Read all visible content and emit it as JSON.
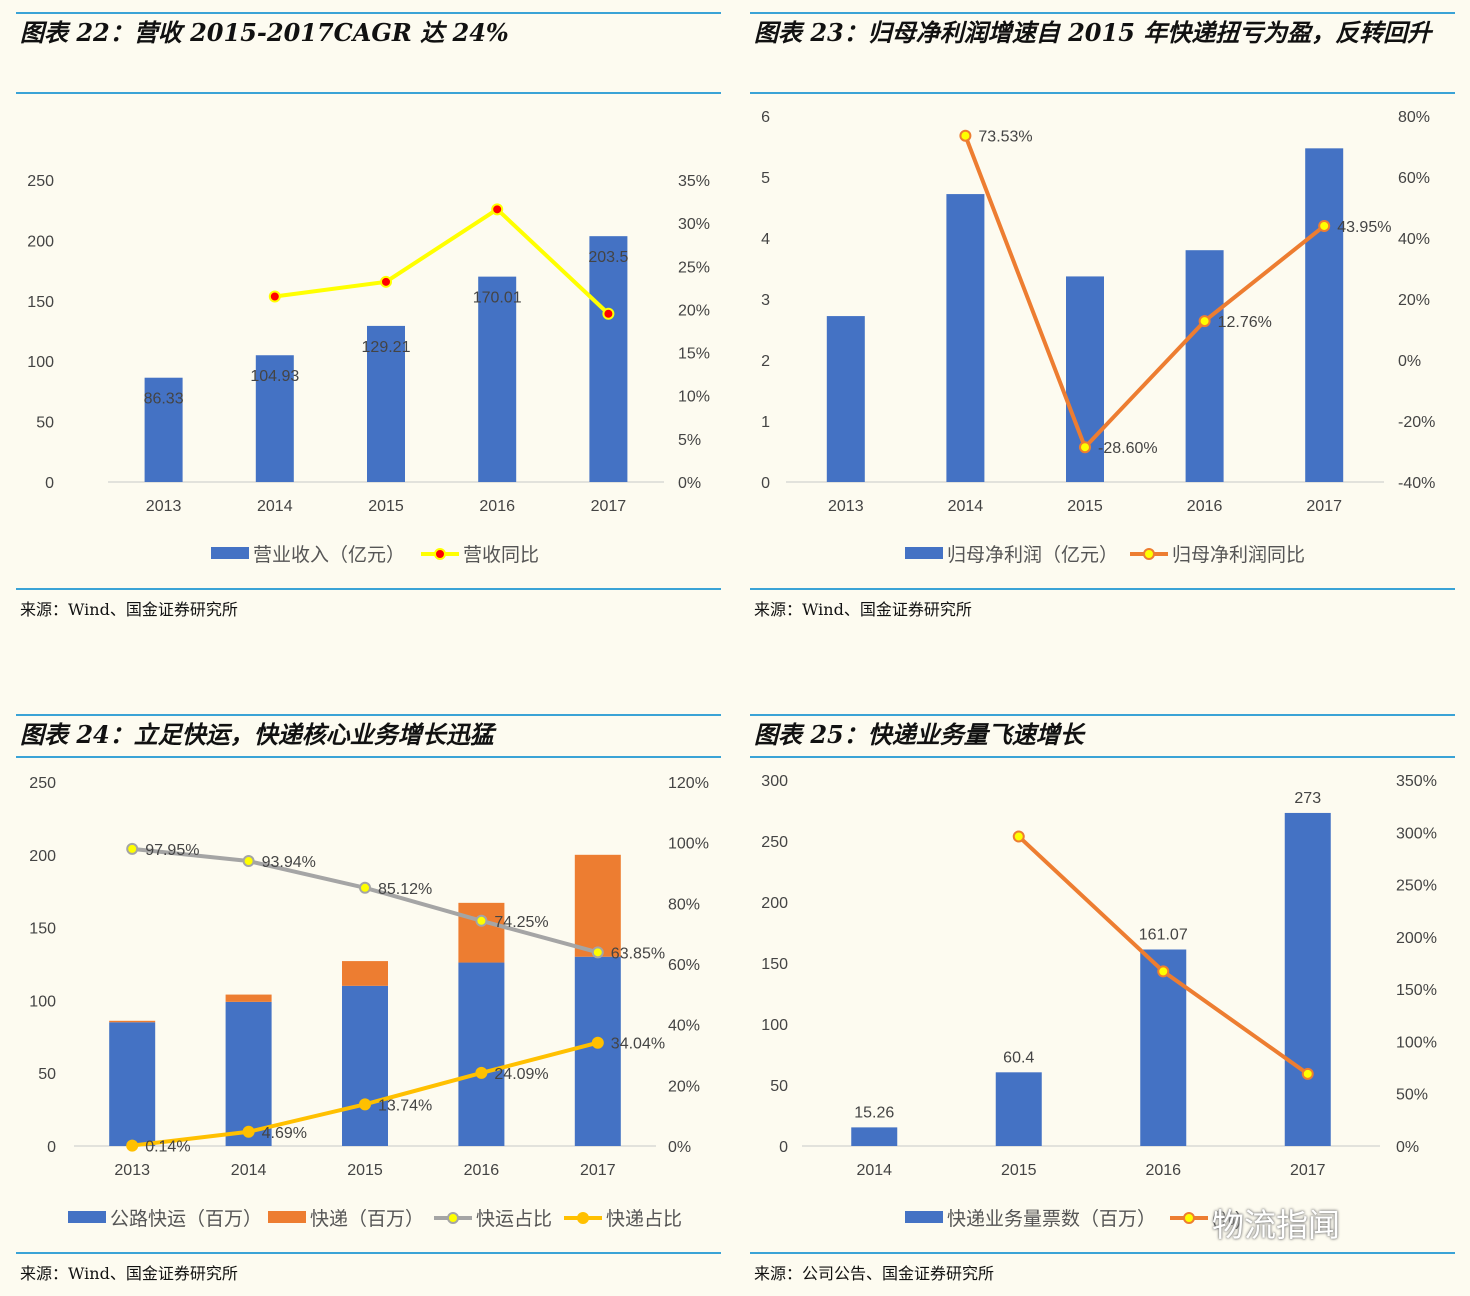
{
  "panels": [
    {
      "title": "图表 22：营收 2015-2017CAGR 达 24%",
      "source": "来源：Wind、国金证券研究所",
      "chart_data": {
        "type": "bar",
        "categories": [
          "2013",
          "2014",
          "2015",
          "2016",
          "2017"
        ],
        "series": [
          {
            "name": "营业收入（亿元）",
            "type": "bar",
            "axis": "left",
            "values": [
              86.33,
              104.93,
              129.21,
              170.01,
              203.5
            ],
            "labels": [
              "86.33",
              "104.93",
              "129.21",
              "170.01",
              "203.5"
            ],
            "color": "#4472c4"
          },
          {
            "name": "营收同比",
            "type": "line",
            "axis": "right",
            "values": [
              null,
              0.215,
              0.232,
              0.316,
              0.195
            ],
            "labels": [],
            "color": "#ffff00",
            "marker": "#ff0000"
          }
        ],
        "left_axis": {
          "min": 0,
          "max": 250,
          "ticks": [
            "0",
            "50",
            "100",
            "150",
            "200",
            "250"
          ]
        },
        "right_axis": {
          "min": 0,
          "max": 0.35,
          "ticks": [
            "0%",
            "5%",
            "10%",
            "15%",
            "20%",
            "25%",
            "30%",
            "35%"
          ]
        }
      }
    },
    {
      "title": "图表 23：归母净利润增速自 2015 年快递扭亏为盈，反转回升",
      "source": "来源：Wind、国金证券研究所",
      "chart_data": {
        "type": "bar",
        "categories": [
          "2013",
          "2014",
          "2015",
          "2016",
          "2017"
        ],
        "series": [
          {
            "name": "归母净利润（亿元）",
            "type": "bar",
            "axis": "left",
            "values": [
              2.72,
              4.72,
              3.37,
              3.8,
              5.47
            ],
            "labels": [],
            "color": "#4472c4"
          },
          {
            "name": "归母净利润同比",
            "type": "line",
            "axis": "right",
            "values": [
              null,
              0.7353,
              -0.286,
              0.1276,
              0.4395
            ],
            "labels": [
              null,
              "73.53%",
              "-28.60%",
              "12.76%",
              "43.95%"
            ],
            "color": "#ed7d31",
            "marker": "#ffff00"
          }
        ],
        "left_axis": {
          "min": 0,
          "max": 6,
          "ticks": [
            "0",
            "1",
            "2",
            "3",
            "4",
            "5",
            "6"
          ]
        },
        "right_axis": {
          "min": -0.4,
          "max": 0.8,
          "ticks": [
            "-40%",
            "-20%",
            "0%",
            "20%",
            "40%",
            "60%",
            "80%"
          ]
        }
      }
    },
    {
      "title": "图表 24：立足快运，快递核心业务增长迅猛",
      "source": "来源：Wind、国金证券研究所",
      "chart_data": {
        "type": "bar",
        "stacked": true,
        "categories": [
          "2013",
          "2014",
          "2015",
          "2016",
          "2017"
        ],
        "series": [
          {
            "name": "公路快运（百万）",
            "type": "bar",
            "axis": "left",
            "values": [
              85,
              99,
              110,
              126,
              130
            ],
            "labels": [],
            "color": "#4472c4"
          },
          {
            "name": "快递（百万）",
            "type": "bar",
            "axis": "left",
            "values": [
              1,
              5,
              17,
              41,
              70
            ],
            "labels": [],
            "color": "#ed7d31"
          },
          {
            "name": "快运占比",
            "type": "line",
            "axis": "right",
            "values": [
              0.9795,
              0.9394,
              0.8512,
              0.7425,
              0.6385
            ],
            "labels": [
              "97.95%",
              "93.94%",
              "85.12%",
              "74.25%",
              "63.85%"
            ],
            "color": "#a5a5a5",
            "marker": "#ffff00"
          },
          {
            "name": "快递占比",
            "type": "line",
            "axis": "right",
            "values": [
              0.0014,
              0.0469,
              0.1374,
              0.2409,
              0.3404
            ],
            "labels": [
              "0.14%",
              "4.69%",
              "13.74%",
              "24.09%",
              "34.04%"
            ],
            "color": "#ffc000",
            "marker": "#ffc000"
          }
        ],
        "left_axis": {
          "min": 0,
          "max": 250,
          "ticks": [
            "0",
            "50",
            "100",
            "150",
            "200",
            "250"
          ]
        },
        "right_axis": {
          "min": 0,
          "max": 1.2,
          "ticks": [
            "0%",
            "20%",
            "40%",
            "60%",
            "80%",
            "100%",
            "120%"
          ]
        }
      }
    },
    {
      "title": "图表 25：快递业务量飞速增长",
      "source": "来源：公司公告、国金证券研究所",
      "chart_data": {
        "type": "bar",
        "categories": [
          "2014",
          "2015",
          "2016",
          "2017"
        ],
        "series": [
          {
            "name": "快递业务量票数（百万）",
            "type": "bar",
            "axis": "left",
            "values": [
              15.26,
              60.4,
              161.07,
              273
            ],
            "labels": [
              "15.26",
              "60.4",
              "161.07",
              "273"
            ],
            "color": "#4472c4"
          },
          {
            "name": "(%)",
            "type": "line",
            "axis": "right",
            "values": [
              null,
              2.96,
              1.67,
              0.69
            ],
            "labels": [],
            "color": "#ed7d31",
            "marker": "#ffff00"
          }
        ],
        "left_axis": {
          "min": 0,
          "max": 300,
          "ticks": [
            "0",
            "50",
            "100",
            "150",
            "200",
            "250",
            "300"
          ]
        },
        "right_axis": {
          "min": 0,
          "max": 3.5,
          "ticks": [
            "0%",
            "50%",
            "100%",
            "150%",
            "200%",
            "250%",
            "300%",
            "350%"
          ]
        }
      }
    }
  ],
  "watermark": "物流指闻"
}
